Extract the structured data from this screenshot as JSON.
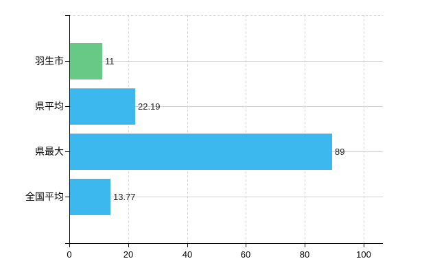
{
  "chart_data": {
    "type": "bar",
    "orientation": "horizontal",
    "title": "",
    "xlabel": "",
    "ylabel": "",
    "categories": [
      "羽生市",
      "県平均",
      "県最大",
      "全国平均"
    ],
    "values": [
      11,
      22.19,
      89,
      13.77
    ],
    "value_labels": [
      "11",
      "22.19",
      "89",
      "13.77"
    ],
    "bar_colors": [
      "#68c886",
      "#3cb8ee",
      "#3cb8ee",
      "#3cb8ee"
    ],
    "xticks": [
      "0",
      "20",
      "40",
      "60",
      "80",
      "100"
    ],
    "xtick_values": [
      0,
      20,
      40,
      60,
      80,
      100
    ],
    "xlim": [
      0,
      106.5
    ],
    "grid": "on",
    "legend": "none"
  },
  "colors": {
    "background": "#ffffff",
    "axis": "#000000",
    "gridline": "#d2d2d2",
    "bar_green": "#68c886",
    "bar_blue": "#3cb8ee",
    "category_text": "#000000",
    "value_text": "#222222"
  }
}
